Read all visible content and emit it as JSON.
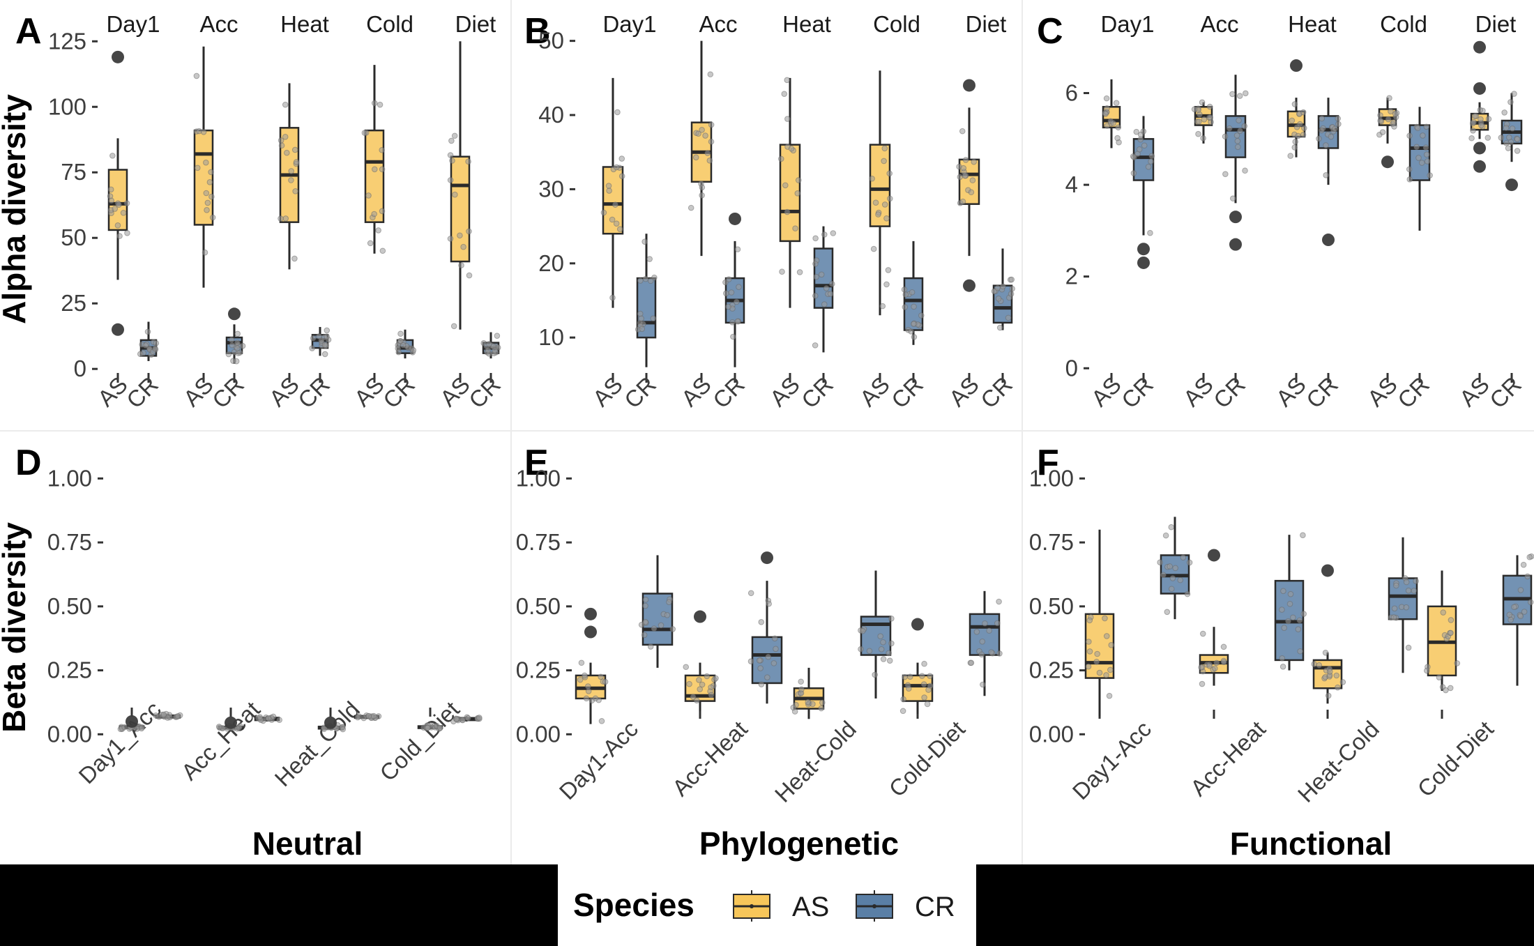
{
  "colors": {
    "AS": "#f7c65a",
    "CR": "#5a7fa6",
    "box_line": "#2a2a2a",
    "point": "#444444",
    "legend_bar": "#000000",
    "grid": "#ebebeb"
  },
  "legend": {
    "title": "Species",
    "items": [
      {
        "key": "AS",
        "label": "AS",
        "color": "#f7c65a"
      },
      {
        "key": "CR",
        "label": "CR",
        "color": "#5a7fa6"
      }
    ]
  },
  "ylabels": {
    "alpha": "Alpha diversity",
    "beta": "Beta diversity"
  },
  "bottom_titles": [
    "Neutral",
    "Phylogenetic",
    "Functional"
  ],
  "chart_data": [
    {
      "panel": "A",
      "type": "box",
      "ylabel": "Alpha diversity",
      "facets": [
        "Day1",
        "Acc",
        "Heat",
        "Cold",
        "Diet"
      ],
      "groups": [
        "AS",
        "CR"
      ],
      "yticks": [
        0,
        25,
        50,
        75,
        100,
        125
      ],
      "ylim": [
        -5,
        128
      ],
      "boxes": [
        {
          "facet": "Day1",
          "group": "AS",
          "min": 34,
          "q1": 53,
          "median": 63,
          "q3": 76,
          "max": 88,
          "outliers": [
            119,
            15
          ]
        },
        {
          "facet": "Day1",
          "group": "CR",
          "min": 3,
          "q1": 5,
          "median": 8,
          "q3": 11,
          "max": 18,
          "outliers": []
        },
        {
          "facet": "Acc",
          "group": "AS",
          "min": 31,
          "q1": 55,
          "median": 82,
          "q3": 91,
          "max": 123,
          "outliers": []
        },
        {
          "facet": "Acc",
          "group": "CR",
          "min": 2,
          "q1": 6,
          "median": 10,
          "q3": 12,
          "max": 17,
          "outliers": [
            21
          ]
        },
        {
          "facet": "Heat",
          "group": "AS",
          "min": 38,
          "q1": 56,
          "median": 74,
          "q3": 92,
          "max": 109,
          "outliers": []
        },
        {
          "facet": "Heat",
          "group": "CR",
          "min": 5,
          "q1": 8,
          "median": 11,
          "q3": 13,
          "max": 16,
          "outliers": []
        },
        {
          "facet": "Cold",
          "group": "AS",
          "min": 44,
          "q1": 56,
          "median": 79,
          "q3": 91,
          "max": 116,
          "outliers": []
        },
        {
          "facet": "Cold",
          "group": "CR",
          "min": 4,
          "q1": 6,
          "median": 8,
          "q3": 11,
          "max": 15,
          "outliers": []
        },
        {
          "facet": "Diet",
          "group": "AS",
          "min": 15,
          "q1": 41,
          "median": 70,
          "q3": 81,
          "max": 125,
          "outliers": []
        },
        {
          "facet": "Diet",
          "group": "CR",
          "min": 4,
          "q1": 6,
          "median": 8,
          "q3": 10,
          "max": 14,
          "outliers": []
        }
      ]
    },
    {
      "panel": "B",
      "type": "box",
      "ylabel": "",
      "facets": [
        "Day1",
        "Acc",
        "Heat",
        "Cold",
        "Diet"
      ],
      "groups": [
        "AS",
        "CR"
      ],
      "yticks": [
        10,
        20,
        30,
        40,
        50
      ],
      "ylim": [
        4,
        51
      ],
      "boxes": [
        {
          "facet": "Day1",
          "group": "AS",
          "min": 14,
          "q1": 24,
          "median": 28,
          "q3": 33,
          "max": 45,
          "outliers": []
        },
        {
          "facet": "Day1",
          "group": "CR",
          "min": 6,
          "q1": 10,
          "median": 12,
          "q3": 18,
          "max": 24,
          "outliers": []
        },
        {
          "facet": "Acc",
          "group": "AS",
          "min": 21,
          "q1": 31,
          "median": 35,
          "q3": 39,
          "max": 50,
          "outliers": []
        },
        {
          "facet": "Acc",
          "group": "CR",
          "min": 6,
          "q1": 12,
          "median": 15,
          "q3": 18,
          "max": 23,
          "outliers": [
            26
          ]
        },
        {
          "facet": "Heat",
          "group": "AS",
          "min": 14,
          "q1": 23,
          "median": 27,
          "q3": 36,
          "max": 45,
          "outliers": []
        },
        {
          "facet": "Heat",
          "group": "CR",
          "min": 8,
          "q1": 14,
          "median": 17,
          "q3": 22,
          "max": 25,
          "outliers": []
        },
        {
          "facet": "Cold",
          "group": "AS",
          "min": 13,
          "q1": 25,
          "median": 30,
          "q3": 36,
          "max": 46,
          "outliers": []
        },
        {
          "facet": "Cold",
          "group": "CR",
          "min": 9,
          "q1": 11,
          "median": 15,
          "q3": 18,
          "max": 23,
          "outliers": []
        },
        {
          "facet": "Diet",
          "group": "AS",
          "min": 21,
          "q1": 28,
          "median": 32,
          "q3": 34,
          "max": 41,
          "outliers": [
            44,
            17
          ]
        },
        {
          "facet": "Diet",
          "group": "CR",
          "min": 11,
          "q1": 12,
          "median": 14,
          "q3": 17,
          "max": 22,
          "outliers": []
        }
      ]
    },
    {
      "panel": "C",
      "type": "box",
      "ylabel": "",
      "facets": [
        "Day1",
        "Acc",
        "Heat",
        "Cold",
        "Diet"
      ],
      "groups": [
        "AS",
        "CR"
      ],
      "yticks": [
        0,
        2,
        4,
        6
      ],
      "ylim": [
        -0.3,
        7.3
      ],
      "boxes": [
        {
          "facet": "Day1",
          "group": "AS",
          "min": 4.8,
          "q1": 5.25,
          "median": 5.4,
          "q3": 5.7,
          "max": 6.3,
          "outliers": []
        },
        {
          "facet": "Day1",
          "group": "CR",
          "min": 2.9,
          "q1": 4.1,
          "median": 4.6,
          "q3": 5.0,
          "max": 5.5,
          "outliers": [
            2.6,
            2.3
          ]
        },
        {
          "facet": "Acc",
          "group": "AS",
          "min": 4.9,
          "q1": 5.3,
          "median": 5.5,
          "q3": 5.7,
          "max": 5.8,
          "outliers": []
        },
        {
          "facet": "Acc",
          "group": "CR",
          "min": 3.6,
          "q1": 4.6,
          "median": 5.2,
          "q3": 5.5,
          "max": 6.4,
          "outliers": [
            3.3,
            2.7
          ]
        },
        {
          "facet": "Heat",
          "group": "AS",
          "min": 4.6,
          "q1": 5.05,
          "median": 5.3,
          "q3": 5.6,
          "max": 5.9,
          "outliers": [
            6.6
          ]
        },
        {
          "facet": "Heat",
          "group": "CR",
          "min": 4.0,
          "q1": 4.8,
          "median": 5.2,
          "q3": 5.5,
          "max": 5.9,
          "outliers": [
            2.8
          ]
        },
        {
          "facet": "Cold",
          "group": "AS",
          "min": 4.9,
          "q1": 5.3,
          "median": 5.45,
          "q3": 5.65,
          "max": 5.9,
          "outliers": [
            4.5
          ]
        },
        {
          "facet": "Cold",
          "group": "CR",
          "min": 3.0,
          "q1": 4.1,
          "median": 4.8,
          "q3": 5.3,
          "max": 5.7,
          "outliers": []
        },
        {
          "facet": "Diet",
          "group": "AS",
          "min": 5.0,
          "q1": 5.2,
          "median": 5.35,
          "q3": 5.55,
          "max": 5.8,
          "outliers": [
            7.0,
            6.1,
            4.8,
            4.4
          ]
        },
        {
          "facet": "Diet",
          "group": "CR",
          "min": 4.5,
          "q1": 4.9,
          "median": 5.15,
          "q3": 5.4,
          "max": 6.0,
          "outliers": [
            4.0
          ]
        }
      ]
    },
    {
      "panel": "D",
      "type": "box",
      "ylabel": "Beta diversity",
      "categories": [
        "Day1_Acc",
        "Acc_Heat",
        "Heat_Cold",
        "Cold_Diet"
      ],
      "groups": [
        "AS",
        "CR"
      ],
      "yticks": [
        0.0,
        0.25,
        0.5,
        0.75,
        1.0
      ],
      "ytick_labels": [
        "0.00",
        "0.25",
        "0.50",
        "0.75",
        "1.00"
      ],
      "ylim": [
        -0.04,
        1.05
      ],
      "boxes": [
        {
          "category": "Day1_Acc",
          "group": "AS",
          "min": 0.02,
          "q1": 0.024,
          "median": 0.028,
          "q3": 0.032,
          "max": 0.04,
          "outliers": [
            0.05
          ]
        },
        {
          "category": "Day1_Acc",
          "group": "CR",
          "min": 0.06,
          "q1": 0.065,
          "median": 0.07,
          "q3": 0.074,
          "max": 0.08,
          "outliers": []
        },
        {
          "category": "Acc_Heat",
          "group": "AS",
          "min": 0.018,
          "q1": 0.022,
          "median": 0.026,
          "q3": 0.03,
          "max": 0.036,
          "outliers": [
            0.045
          ]
        },
        {
          "category": "Acc_Heat",
          "group": "CR",
          "min": 0.05,
          "q1": 0.055,
          "median": 0.06,
          "q3": 0.065,
          "max": 0.072,
          "outliers": []
        },
        {
          "category": "Heat_Cold",
          "group": "AS",
          "min": 0.018,
          "q1": 0.022,
          "median": 0.026,
          "q3": 0.03,
          "max": 0.036,
          "outliers": [
            0.045
          ]
        },
        {
          "category": "Heat_Cold",
          "group": "CR",
          "min": 0.06,
          "q1": 0.064,
          "median": 0.068,
          "q3": 0.072,
          "max": 0.078,
          "outliers": []
        },
        {
          "category": "Cold_Diet",
          "group": "AS",
          "min": 0.02,
          "q1": 0.024,
          "median": 0.028,
          "q3": 0.032,
          "max": 0.036,
          "outliers": []
        },
        {
          "category": "Cold_Diet",
          "group": "CR",
          "min": 0.05,
          "q1": 0.055,
          "median": 0.06,
          "q3": 0.064,
          "max": 0.07,
          "outliers": []
        }
      ]
    },
    {
      "panel": "E",
      "type": "box",
      "ylabel": "",
      "categories": [
        "Day1-Acc",
        "Acc-Heat",
        "Heat-Cold",
        "Cold-Diet"
      ],
      "groups": [
        "AS",
        "CR"
      ],
      "yticks": [
        0.0,
        0.25,
        0.5,
        0.75,
        1.0
      ],
      "ytick_labels": [
        "0.00",
        "0.25",
        "0.50",
        "0.75",
        "1.00"
      ],
      "ylim": [
        -0.04,
        1.05
      ],
      "boxes": [
        {
          "category": "Day1-Acc",
          "group": "AS",
          "min": 0.04,
          "q1": 0.14,
          "median": 0.18,
          "q3": 0.23,
          "max": 0.28,
          "outliers": [
            0.47,
            0.4
          ]
        },
        {
          "category": "Day1-Acc",
          "group": "CR",
          "min": 0.26,
          "q1": 0.35,
          "median": 0.41,
          "q3": 0.55,
          "max": 0.7,
          "outliers": []
        },
        {
          "category": "Acc-Heat",
          "group": "AS",
          "min": 0.09,
          "q1": 0.13,
          "median": 0.15,
          "q3": 0.23,
          "max": 0.28,
          "outliers": [
            0.46
          ]
        },
        {
          "category": "Acc-Heat",
          "group": "CR",
          "min": 0.12,
          "q1": 0.2,
          "median": 0.31,
          "q3": 0.38,
          "max": 0.6,
          "outliers": [
            0.69
          ]
        },
        {
          "category": "Heat-Cold",
          "group": "AS",
          "min": 0.06,
          "q1": 0.1,
          "median": 0.14,
          "q3": 0.18,
          "max": 0.26,
          "outliers": []
        },
        {
          "category": "Heat-Cold",
          "group": "CR",
          "min": 0.14,
          "q1": 0.31,
          "median": 0.43,
          "q3": 0.46,
          "max": 0.64,
          "outliers": []
        },
        {
          "category": "Cold-Diet",
          "group": "AS",
          "min": 0.08,
          "q1": 0.13,
          "median": 0.19,
          "q3": 0.23,
          "max": 0.28,
          "outliers": [
            0.43
          ]
        },
        {
          "category": "Cold-Diet",
          "group": "CR",
          "min": 0.15,
          "q1": 0.31,
          "median": 0.42,
          "q3": 0.47,
          "max": 0.56,
          "outliers": []
        }
      ]
    },
    {
      "panel": "F",
      "type": "box",
      "ylabel": "",
      "categories": [
        "Day1-Acc",
        "Acc-Heat",
        "Heat-Cold",
        "Cold-Diet"
      ],
      "groups": [
        "AS",
        "CR"
      ],
      "yticks": [
        0.0,
        0.25,
        0.5,
        0.75,
        1.0
      ],
      "ytick_labels": [
        "0.00",
        "0.25",
        "0.50",
        "0.75",
        "1.00"
      ],
      "ylim": [
        -0.04,
        1.05
      ],
      "boxes": [
        {
          "category": "Day1-Acc",
          "group": "AS",
          "min": 0.07,
          "q1": 0.22,
          "median": 0.28,
          "q3": 0.47,
          "max": 0.8,
          "outliers": []
        },
        {
          "category": "Day1-Acc",
          "group": "CR",
          "min": 0.45,
          "q1": 0.55,
          "median": 0.62,
          "q3": 0.7,
          "max": 0.85,
          "outliers": []
        },
        {
          "category": "Acc-Heat",
          "group": "AS",
          "min": 0.19,
          "q1": 0.24,
          "median": 0.28,
          "q3": 0.31,
          "max": 0.42,
          "outliers": [
            0.7
          ]
        },
        {
          "category": "Acc-Heat",
          "group": "CR",
          "min": 0.25,
          "q1": 0.29,
          "median": 0.44,
          "q3": 0.6,
          "max": 0.78,
          "outliers": []
        },
        {
          "category": "Heat-Cold",
          "group": "AS",
          "min": 0.12,
          "q1": 0.18,
          "median": 0.26,
          "q3": 0.29,
          "max": 0.32,
          "outliers": [
            0.64
          ]
        },
        {
          "category": "Heat-Cold",
          "group": "CR",
          "min": 0.24,
          "q1": 0.45,
          "median": 0.54,
          "q3": 0.61,
          "max": 0.77,
          "outliers": []
        },
        {
          "category": "Cold-Diet",
          "group": "AS",
          "min": 0.17,
          "q1": 0.23,
          "median": 0.36,
          "q3": 0.5,
          "max": 0.64,
          "outliers": []
        },
        {
          "category": "Cold-Diet",
          "group": "CR",
          "min": 0.19,
          "q1": 0.43,
          "median": 0.53,
          "q3": 0.62,
          "max": 0.7,
          "outliers": []
        }
      ]
    }
  ]
}
